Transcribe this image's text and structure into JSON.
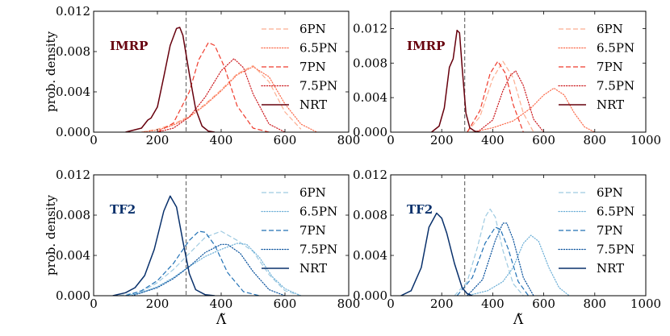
{
  "chart_data": [
    {
      "type": "line",
      "id": "top-left",
      "model_label": "IMRP",
      "label_color": "#67000d",
      "xlim": [
        0,
        800
      ],
      "ylim": [
        0,
        0.012
      ],
      "xticks": [
        0,
        200,
        400,
        600,
        800
      ],
      "xtick_labels": [
        "0",
        "200",
        "400",
        "600",
        "800"
      ],
      "yticks": [
        0,
        0.004,
        0.008,
        0.012
      ],
      "ytick_labels": [
        "0.000",
        "0.004",
        "0.008",
        "0.012"
      ],
      "ylabel": "prob. density",
      "xlabel": "",
      "vline_x": 290,
      "series": [
        {
          "name": "6PN",
          "color": "#fcae91",
          "style": "dashed",
          "x": [
            150,
            200,
            250,
            300,
            350,
            400,
            450,
            500,
            550,
            600,
            650
          ],
          "y": [
            0.0,
            0.0003,
            0.0008,
            0.0016,
            0.0028,
            0.0042,
            0.0058,
            0.0066,
            0.005,
            0.002,
            0.0003
          ]
        },
        {
          "name": "6.5PN",
          "color": "#fb6a4a",
          "style": "dotted",
          "x": [
            150,
            200,
            250,
            300,
            350,
            400,
            450,
            500,
            550,
            600,
            650,
            700
          ],
          "y": [
            0.0,
            0.0002,
            0.0007,
            0.0015,
            0.0027,
            0.0041,
            0.0057,
            0.0065,
            0.0055,
            0.0028,
            0.0008,
            0.0
          ]
        },
        {
          "name": "7PN",
          "color": "#ef3b2c",
          "style": "dashed",
          "x": [
            200,
            250,
            300,
            330,
            360,
            380,
            410,
            450,
            500,
            550
          ],
          "y": [
            0.0,
            0.0009,
            0.004,
            0.0072,
            0.0089,
            0.0086,
            0.0065,
            0.0026,
            0.0004,
            0.0
          ]
        },
        {
          "name": "7.5PN",
          "color": "#cb181d",
          "style": "dotted",
          "x": [
            200,
            250,
            300,
            350,
            400,
            440,
            470,
            500,
            550,
            600
          ],
          "y": [
            0.0,
            0.0004,
            0.0015,
            0.0035,
            0.0061,
            0.0073,
            0.0064,
            0.0038,
            0.0008,
            0.0
          ]
        },
        {
          "name": "NRT",
          "color": "#67000d",
          "style": "solid",
          "x": [
            100,
            150,
            170,
            180,
            200,
            220,
            240,
            260,
            270,
            280,
            300,
            320,
            340,
            360,
            380
          ],
          "y": [
            0.0,
            0.0004,
            0.0012,
            0.0014,
            0.0025,
            0.0055,
            0.0086,
            0.0103,
            0.0104,
            0.0096,
            0.0058,
            0.0023,
            0.0006,
            0.0001,
            0.0
          ]
        }
      ]
    },
    {
      "type": "line",
      "id": "top-right",
      "model_label": "IMRP",
      "label_color": "#67000d",
      "xlim": [
        0,
        1000
      ],
      "ylim": [
        0,
        0.014
      ],
      "xticks": [
        0,
        200,
        400,
        600,
        800,
        1000
      ],
      "xtick_labels": [
        "0",
        "200",
        "400",
        "600",
        "800",
        "1000"
      ],
      "yticks": [
        0,
        0.004,
        0.008,
        0.012
      ],
      "ytick_labels": [
        "0.000",
        "0.004",
        "0.008",
        "0.012"
      ],
      "ylabel": "",
      "xlabel": "",
      "vline_x": 290,
      "series": [
        {
          "name": "6PN",
          "color": "#fcae91",
          "style": "dashed",
          "x": [
            300,
            350,
            400,
            440,
            480,
            520,
            560
          ],
          "y": [
            0.0,
            0.0018,
            0.0062,
            0.0082,
            0.0063,
            0.0022,
            0.0
          ]
        },
        {
          "name": "6.5PN",
          "color": "#fb6a4a",
          "style": "dotted",
          "x": [
            320,
            400,
            480,
            550,
            600,
            640,
            680,
            720,
            760,
            800
          ],
          "y": [
            0.0,
            0.0005,
            0.0013,
            0.0028,
            0.0043,
            0.0051,
            0.0043,
            0.0022,
            0.0006,
            0.0
          ]
        },
        {
          "name": "7PN",
          "color": "#ef3b2c",
          "style": "dashed",
          "x": [
            300,
            350,
            390,
            420,
            450,
            480,
            520
          ],
          "y": [
            0.0,
            0.0025,
            0.0068,
            0.0082,
            0.0068,
            0.0032,
            0.0
          ]
        },
        {
          "name": "7.5PN",
          "color": "#cb181d",
          "style": "dotted",
          "x": [
            340,
            400,
            440,
            470,
            490,
            520,
            560,
            600
          ],
          "y": [
            0.0,
            0.0014,
            0.0048,
            0.0066,
            0.0071,
            0.0054,
            0.0015,
            0.0
          ]
        },
        {
          "name": "NRT",
          "color": "#67000d",
          "style": "solid",
          "x": [
            160,
            190,
            210,
            230,
            245,
            260,
            270,
            280,
            295,
            310,
            330,
            350
          ],
          "y": [
            0.0,
            0.0007,
            0.0028,
            0.0075,
            0.0085,
            0.0118,
            0.0115,
            0.0075,
            0.0022,
            0.0005,
            0.0001,
            0.0
          ]
        }
      ]
    },
    {
      "type": "line",
      "id": "bottom-left",
      "model_label": "TF2",
      "label_color": "#08306b",
      "xlim": [
        0,
        800
      ],
      "ylim": [
        0,
        0.012
      ],
      "xticks": [
        0,
        200,
        400,
        600,
        800
      ],
      "xtick_labels": [
        "0",
        "200",
        "400",
        "600",
        "800"
      ],
      "yticks": [
        0,
        0.004,
        0.008,
        0.012
      ],
      "ytick_labels": [
        "0.000",
        "0.004",
        "0.008",
        "0.012"
      ],
      "ylabel": "prob. density",
      "xlabel": "Λ̃",
      "vline_x": 290,
      "series": [
        {
          "name": "6PN",
          "color": "#9ecae1",
          "style": "dashed",
          "x": [
            80,
            150,
            200,
            250,
            300,
            350,
            400,
            450,
            500,
            550,
            600,
            650
          ],
          "y": [
            0.0,
            0.0004,
            0.0013,
            0.0026,
            0.0042,
            0.0058,
            0.0064,
            0.0055,
            0.0044,
            0.0021,
            0.0005,
            0.0
          ]
        },
        {
          "name": "6.5PN",
          "color": "#6baed6",
          "style": "dotted",
          "x": [
            100,
            150,
            200,
            250,
            300,
            350,
            400,
            450,
            480,
            520,
            560,
            600,
            650
          ],
          "y": [
            0.0,
            0.0003,
            0.0009,
            0.0018,
            0.0029,
            0.0039,
            0.0046,
            0.0052,
            0.0051,
            0.0038,
            0.0019,
            0.0007,
            0.0
          ]
        },
        {
          "name": "7PN",
          "color": "#2171b5",
          "style": "dashed",
          "x": [
            100,
            150,
            200,
            250,
            300,
            330,
            350,
            380,
            420,
            470,
            520
          ],
          "y": [
            0.0,
            0.0005,
            0.0015,
            0.0032,
            0.0055,
            0.0064,
            0.0063,
            0.005,
            0.0023,
            0.0004,
            0.0
          ]
        },
        {
          "name": "7.5PN",
          "color": "#08519c",
          "style": "dotted",
          "x": [
            120,
            200,
            250,
            300,
            350,
            400,
            420,
            460,
            500,
            550,
            600
          ],
          "y": [
            0.0,
            0.0008,
            0.0017,
            0.0029,
            0.0043,
            0.0051,
            0.0051,
            0.0042,
            0.0024,
            0.0006,
            0.0
          ]
        },
        {
          "name": "NRT",
          "color": "#08306b",
          "style": "solid",
          "x": [
            60,
            100,
            130,
            160,
            190,
            220,
            240,
            260,
            280,
            300,
            320,
            350,
            380
          ],
          "y": [
            0.0,
            0.0003,
            0.0008,
            0.002,
            0.0046,
            0.0084,
            0.0099,
            0.0088,
            0.0054,
            0.0022,
            0.0006,
            0.0001,
            0.0
          ]
        }
      ]
    },
    {
      "type": "line",
      "id": "bottom-right",
      "model_label": "TF2",
      "label_color": "#08306b",
      "xlim": [
        0,
        1000
      ],
      "ylim": [
        0,
        0.012
      ],
      "xticks": [
        0,
        200,
        400,
        600,
        800,
        1000
      ],
      "xtick_labels": [
        "0",
        "200",
        "400",
        "600",
        "800",
        "1000"
      ],
      "yticks": [
        0,
        0.004,
        0.008,
        0.012
      ],
      "ytick_labels": [
        "0.000",
        "0.004",
        "0.008",
        "0.012"
      ],
      "ylabel": "",
      "xlabel": "Λ̃",
      "vline_x": 290,
      "series": [
        {
          "name": "6PN",
          "color": "#9ecae1",
          "style": "dashed",
          "x": [
            250,
            300,
            340,
            370,
            390,
            410,
            440,
            480,
            520
          ],
          "y": [
            0.0,
            0.0014,
            0.0048,
            0.0078,
            0.0086,
            0.0078,
            0.0045,
            0.0012,
            0.0
          ]
        },
        {
          "name": "6.5PN",
          "color": "#6baed6",
          "style": "dotted",
          "x": [
            300,
            380,
            440,
            480,
            520,
            550,
            580,
            620,
            660,
            700
          ],
          "y": [
            0.0,
            0.0005,
            0.0014,
            0.0028,
            0.0052,
            0.006,
            0.0054,
            0.0028,
            0.0008,
            0.0
          ]
        },
        {
          "name": "7PN",
          "color": "#2171b5",
          "style": "dashed",
          "x": [
            260,
            320,
            370,
            410,
            430,
            460,
            500,
            540
          ],
          "y": [
            0.0,
            0.0018,
            0.0052,
            0.0068,
            0.0066,
            0.0047,
            0.0014,
            0.0
          ]
        },
        {
          "name": "7.5PN",
          "color": "#08519c",
          "style": "dotted",
          "x": [
            300,
            360,
            410,
            440,
            455,
            480,
            520,
            560
          ],
          "y": [
            0.0,
            0.0016,
            0.0055,
            0.0072,
            0.0072,
            0.0056,
            0.0018,
            0.0
          ]
        },
        {
          "name": "NRT",
          "color": "#08306b",
          "style": "solid",
          "x": [
            40,
            80,
            120,
            150,
            180,
            200,
            220,
            250,
            280,
            300,
            320
          ],
          "y": [
            0.0,
            0.0005,
            0.0028,
            0.0068,
            0.0082,
            0.0077,
            0.0062,
            0.0032,
            0.0008,
            0.0002,
            0.0
          ]
        }
      ]
    }
  ]
}
